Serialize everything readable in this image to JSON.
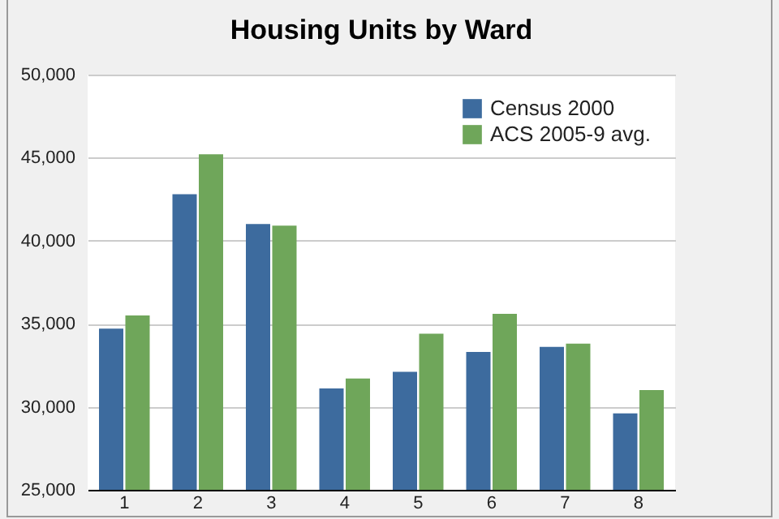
{
  "chart_data": {
    "type": "bar",
    "title": "Housing Units by Ward",
    "categories": [
      "1",
      "2",
      "3",
      "4",
      "5",
      "6",
      "7",
      "8"
    ],
    "series": [
      {
        "name": "Census 2000",
        "color": "#3d6b9e",
        "values": [
          34700,
          42800,
          41000,
          31100,
          32100,
          33300,
          33600,
          29600
        ]
      },
      {
        "name": "ACS 2005-9 avg.",
        "color": "#6fa65a",
        "values": [
          35500,
          45200,
          40900,
          31700,
          34400,
          35600,
          33800,
          31000
        ]
      }
    ],
    "ylim": [
      25000,
      50000
    ],
    "yticks": [
      {
        "value": 25000,
        "label": "25,000"
      },
      {
        "value": 30000,
        "label": "30,000"
      },
      {
        "value": 35000,
        "label": "35,000"
      },
      {
        "value": 40000,
        "label": "40,000"
      },
      {
        "value": 45000,
        "label": "45,000"
      },
      {
        "value": 50000,
        "label": "50,000"
      }
    ],
    "grid": "y",
    "legend": "top right"
  }
}
